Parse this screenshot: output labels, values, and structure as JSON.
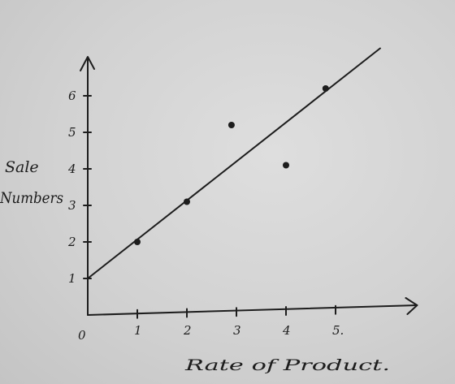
{
  "chart_data": {
    "type": "scatter",
    "title": "",
    "xlabel": "Rate of Product.",
    "ylabel_lines": [
      "Sale",
      "Numbers"
    ],
    "origin_label": "0",
    "xlim": [
      0,
      6.4
    ],
    "ylim": [
      0,
      7.0
    ],
    "x_ticks": [
      1,
      2,
      3,
      4,
      5
    ],
    "x_tick_labels": [
      "1",
      "2",
      "3",
      "4",
      "5."
    ],
    "y_ticks": [
      1,
      2,
      3,
      4,
      5,
      6
    ],
    "y_tick_labels": [
      "1",
      "2",
      "3",
      "4",
      "5",
      "6"
    ],
    "points": [
      {
        "x": 1.0,
        "y": 2.0
      },
      {
        "x": 2.0,
        "y": 3.1
      },
      {
        "x": 2.9,
        "y": 5.2
      },
      {
        "x": 4.0,
        "y": 4.1
      },
      {
        "x": 4.8,
        "y": 6.2
      }
    ],
    "trend_line": {
      "x": [
        0,
        5.9
      ],
      "y": [
        1.0,
        7.3
      ]
    },
    "grid": false,
    "colors": {
      "ink": "#1d1d1d",
      "paper": "#d6d6d6"
    }
  }
}
